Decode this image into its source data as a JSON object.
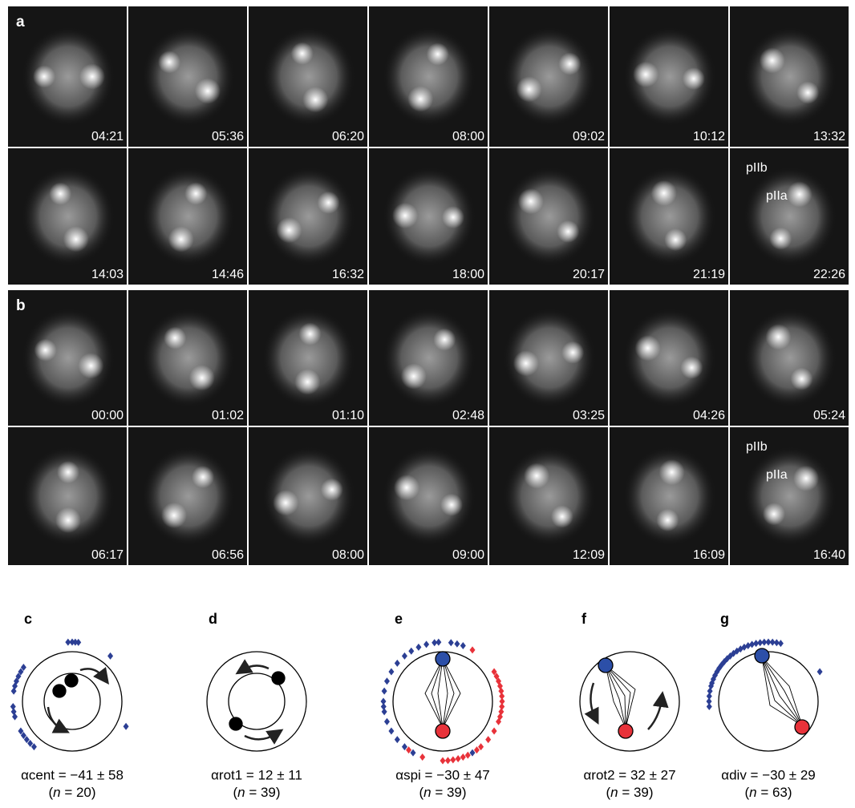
{
  "panels": [
    {
      "label": "a",
      "rows": [
        [
          "04:21",
          "05:36",
          "06:20",
          "08:00",
          "09:02",
          "10:12",
          "13:32"
        ],
        [
          "14:03",
          "14:46",
          "16:32",
          "18:00",
          "20:17",
          "21:19",
          "22:26"
        ]
      ],
      "cell_labels": [
        "pIIb",
        "pIIa"
      ]
    },
    {
      "label": "b",
      "rows": [
        [
          "00:00",
          "01:02",
          "01:10",
          "02:48",
          "03:25",
          "04:26",
          "05:24"
        ],
        [
          "06:17",
          "06:56",
          "08:00",
          "09:00",
          "12:09",
          "16:09",
          "16:40"
        ]
      ],
      "cell_labels": [
        "pIIb",
        "pIIa"
      ]
    }
  ],
  "diagrams": [
    {
      "label": "c",
      "formula": "αcent = −41 ± 58",
      "n_open": "(",
      "n_var": "n",
      "n_close": " = 20)",
      "blue_deg": [
        -4,
        0,
        3,
        6,
        40,
        115,
        -55,
        -60,
        -65,
        -70,
        -75,
        -80,
        -95,
        -100,
        -105,
        -120,
        -125,
        -130,
        -135,
        -140
      ]
    },
    {
      "label": "d",
      "formula": "αrot1 = 12 ± 11",
      "n_open": "(",
      "n_var": "n",
      "n_close": " = 39)"
    },
    {
      "label": "e",
      "formula": "αspi = −30 ± 47",
      "n_open": "(",
      "n_var": "n",
      "n_close": " = 39)",
      "blue_deg": [
        -150,
        -140,
        -130,
        -120,
        -110,
        -100,
        -95,
        -90,
        -80,
        -70,
        -60,
        -50,
        -40,
        -32,
        -24,
        -16,
        -8,
        -4,
        8,
        14,
        20,
        150
      ],
      "red_deg": [
        30,
        60,
        65,
        70,
        75,
        80,
        85,
        90,
        95,
        100,
        105,
        110,
        120,
        130,
        140,
        145,
        155,
        160,
        165,
        170,
        175,
        180,
        -160,
        -145
      ]
    },
    {
      "label": "f",
      "formula": "αrot2 = 32 ± 27",
      " n_open": "(",
      "n_var": "n",
      "n_close": " = 39)"
    },
    {
      "label": "g",
      "formula": "αdiv = −30 ± 29",
      "n_open": "(",
      "n_var": "n",
      "n_close": " = 63)",
      "blue_deg": [
        -95,
        -90,
        -85,
        -80,
        -75,
        -72,
        -68,
        -64,
        -60,
        -56,
        -52,
        -48,
        -44,
        -40,
        -36,
        -32,
        -28,
        -24,
        -20,
        -16,
        -12,
        -8,
        -4,
        0,
        4,
        8,
        12,
        60
      ]
    }
  ]
}
